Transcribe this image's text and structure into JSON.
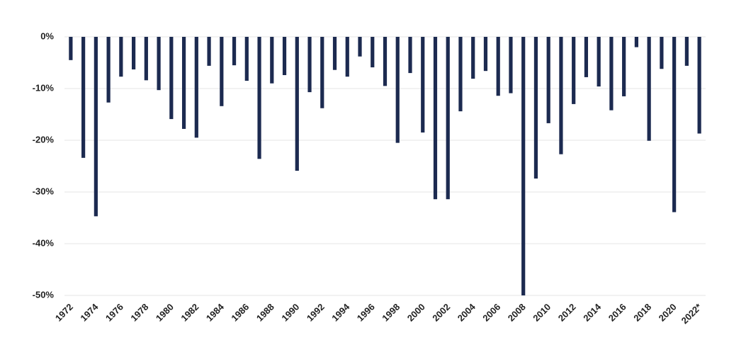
{
  "chart_data": {
    "type": "bar",
    "categories": [
      "1972",
      null,
      "1974",
      null,
      "1976",
      null,
      "1978",
      null,
      "1980",
      null,
      "1982",
      null,
      "1984",
      null,
      "1986",
      null,
      "1988",
      null,
      "1990",
      null,
      "1992",
      null,
      "1994",
      null,
      "1996",
      null,
      "1998",
      null,
      "2000",
      null,
      "2002",
      null,
      "2004",
      null,
      "2006",
      null,
      "2008",
      null,
      "2010",
      null,
      "2012",
      null,
      "2014",
      null,
      "2016",
      null,
      "2018",
      null,
      "2020",
      null,
      "2022*"
    ],
    "values": [
      -4.5,
      -23.4,
      -34.7,
      -12.7,
      -7.7,
      -6.3,
      -8.4,
      -10.3,
      -15.9,
      -17.8,
      -19.5,
      -5.6,
      -13.4,
      -5.5,
      -8.5,
      -23.6,
      -9.0,
      -7.4,
      -25.9,
      -10.7,
      -13.8,
      -6.4,
      -7.7,
      -3.8,
      -5.9,
      -9.5,
      -20.5,
      -7.0,
      -18.5,
      -31.4,
      -31.4,
      -14.4,
      -8.1,
      -6.6,
      -11.4,
      -10.9,
      -50,
      -27.4,
      -16.7,
      -22.7,
      -13.0,
      -7.8,
      -9.6,
      -14.2,
      -11.5,
      -2.0,
      -20.1,
      -6.2,
      -33.9,
      -5.6,
      -18.7
    ],
    "color": "#1c2a50",
    "ylim": [
      -50,
      0
    ],
    "yticks": [
      {
        "value": 0,
        "label": "0%"
      },
      {
        "value": -10,
        "label": "-10%"
      },
      {
        "value": -20,
        "label": "-20%"
      },
      {
        "value": -30,
        "label": "-30%"
      },
      {
        "value": -40,
        "label": "-40%"
      },
      {
        "value": -50,
        "label": "-50%"
      }
    ],
    "grid": true
  }
}
